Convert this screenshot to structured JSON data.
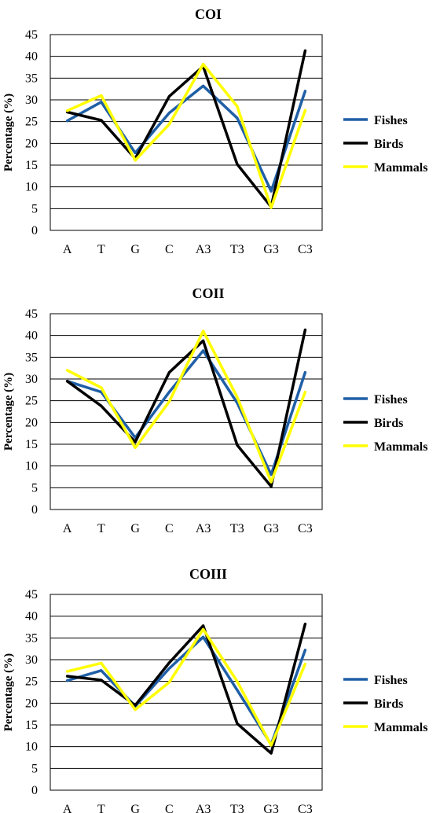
{
  "chart_data": [
    {
      "type": "line",
      "title": "COI",
      "ylabel": "Percentage (%)",
      "xlabel": "",
      "categories": [
        "A",
        "T",
        "G",
        "C",
        "A3",
        "T3",
        "G3",
        "C3"
      ],
      "yticks": [
        "0",
        "5",
        "10",
        "15",
        "20",
        "25",
        "30",
        "35",
        "40",
        "45"
      ],
      "ylim": [
        0,
        45
      ],
      "grid": true,
      "legend_position": "right",
      "series": [
        {
          "name": "Fishes",
          "color": "#1F5FA6",
          "values": [
            25.2,
            29.5,
            17.8,
            27.0,
            33.2,
            25.8,
            9.0,
            32.0
          ]
        },
        {
          "name": "Birds",
          "color": "#000000",
          "values": [
            27.2,
            25.3,
            16.5,
            30.8,
            37.7,
            15.2,
            5.4,
            41.3
          ]
        },
        {
          "name": "Mammals",
          "color": "#FFFF00",
          "values": [
            27.5,
            31.0,
            16.1,
            24.4,
            38.2,
            28.5,
            5.2,
            27.6
          ]
        }
      ]
    },
    {
      "type": "line",
      "title": "COII",
      "ylabel": "Percentage (%)",
      "xlabel": "",
      "categories": [
        "A",
        "T",
        "G",
        "C",
        "A3",
        "T3",
        "G3",
        "C3"
      ],
      "yticks": [
        "0",
        "5",
        "10",
        "15",
        "20",
        "25",
        "30",
        "35",
        "40",
        "45"
      ],
      "ylim": [
        0,
        45
      ],
      "grid": true,
      "legend_position": "right",
      "series": [
        {
          "name": "Fishes",
          "color": "#1F5FA6",
          "values": [
            29.5,
            27.0,
            16.5,
            27.0,
            36.5,
            24.5,
            8.0,
            31.5
          ]
        },
        {
          "name": "Birds",
          "color": "#000000",
          "values": [
            29.5,
            23.8,
            15.5,
            31.5,
            38.8,
            14.8,
            5.3,
            41.3
          ]
        },
        {
          "name": "Mammals",
          "color": "#FFFF00",
          "values": [
            32.0,
            28.0,
            14.2,
            24.8,
            41.0,
            25.8,
            6.3,
            27.0
          ]
        }
      ]
    },
    {
      "type": "line",
      "title": "COIII",
      "ylabel": "Percentage (%)",
      "xlabel": "",
      "categories": [
        "A",
        "T",
        "G",
        "C",
        "A3",
        "T3",
        "G3",
        "C3"
      ],
      "yticks": [
        "0",
        "5",
        "10",
        "15",
        "20",
        "25",
        "30",
        "35",
        "40",
        "45"
      ],
      "ylim": [
        0,
        45
      ],
      "grid": true,
      "legend_position": "right",
      "series": [
        {
          "name": "Fishes",
          "color": "#1F5FA6",
          "values": [
            25.2,
            27.5,
            19.3,
            28.0,
            35.2,
            23.0,
            10.5,
            32.2
          ]
        },
        {
          "name": "Birds",
          "color": "#000000",
          "values": [
            26.2,
            25.3,
            19.5,
            29.3,
            37.8,
            15.3,
            8.5,
            38.2
          ]
        },
        {
          "name": "Mammals",
          "color": "#FFFF00",
          "values": [
            27.3,
            29.2,
            18.5,
            24.8,
            37.0,
            25.0,
            10.3,
            29.0
          ]
        }
      ]
    }
  ]
}
